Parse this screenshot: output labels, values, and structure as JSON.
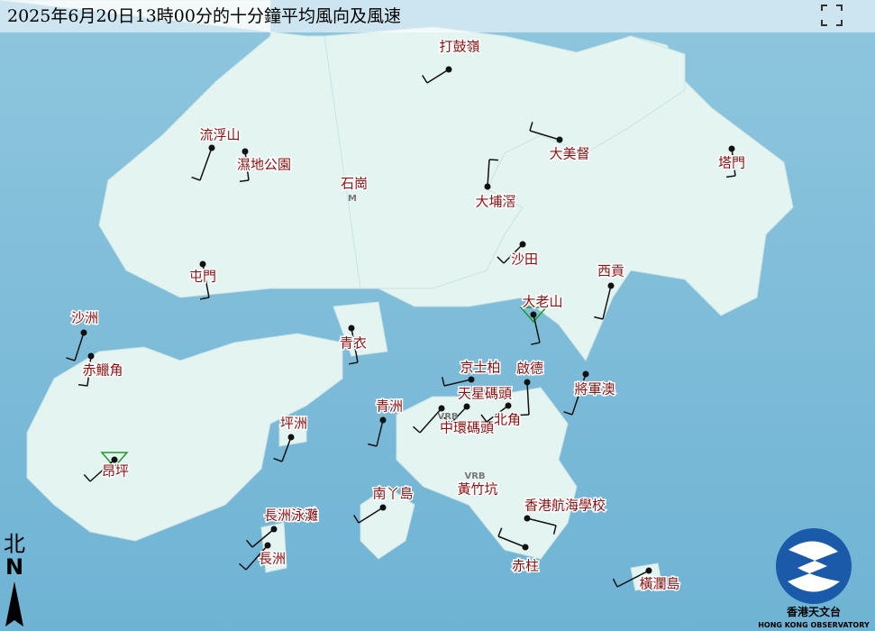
{
  "header": {
    "title": "2025年6月20日13時00分的十分鐘平均風向及風速"
  },
  "stations": [
    {
      "label": "打鼓嶺"
    },
    {
      "label": "流浮山"
    },
    {
      "label": "濕地公園"
    },
    {
      "label": "大美督"
    },
    {
      "label": "塔門"
    },
    {
      "label": "大埔滘"
    },
    {
      "label": "沙田"
    },
    {
      "label": "屯門"
    },
    {
      "label": "西貢"
    },
    {
      "label": "大老山"
    },
    {
      "label": "沙洲"
    },
    {
      "label": "赤鱲角"
    },
    {
      "label": "青衣"
    },
    {
      "label": "京士柏"
    },
    {
      "label": "啟德"
    },
    {
      "label": "將軍澳"
    },
    {
      "label": "天星碼頭"
    },
    {
      "label": "中環碼頭"
    },
    {
      "label": "北角"
    },
    {
      "label": "坪洲"
    },
    {
      "label": "青洲"
    },
    {
      "label": "昂坪"
    },
    {
      "label": "南丫島"
    },
    {
      "label": "香港航海學校"
    },
    {
      "label": "長洲泳灘"
    },
    {
      "label": "長洲"
    },
    {
      "label": "赤柱"
    },
    {
      "label": "橫瀾島"
    }
  ],
  "place_labels": [
    {
      "label": "石崗"
    },
    {
      "label": "黃竹坑"
    }
  ],
  "map_markers": [
    "M",
    "VRB",
    "VRB"
  ],
  "north": {
    "chinese": "北",
    "letter": "N"
  },
  "logo": {
    "chinese": "香港天文台",
    "english": "HONG KONG OBSERVATORY"
  }
}
